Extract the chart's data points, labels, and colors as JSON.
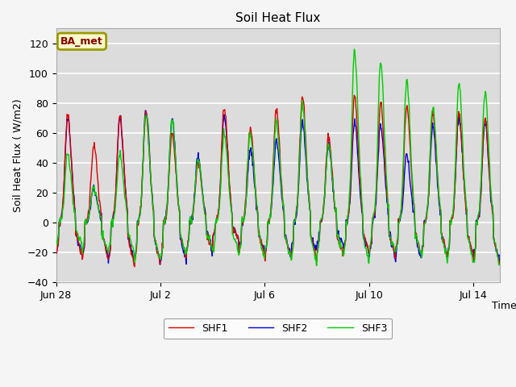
{
  "title": "Soil Heat Flux",
  "ylabel": "Soil Heat Flux ( W/m2)",
  "xlabel": "Time",
  "legend_label": "BA_met",
  "series_labels": [
    "SHF1",
    "SHF2",
    "SHF3"
  ],
  "series_colors": [
    "#dd0000",
    "#0000dd",
    "#00cc00"
  ],
  "ylim": [
    -40,
    130
  ],
  "yticks": [
    -40,
    -20,
    0,
    20,
    40,
    60,
    80,
    100,
    120
  ],
  "bg_color": "#dcdcdc",
  "plot_bg_color": "#dcdcdc",
  "grid_color": "#ffffff",
  "legend_box_bg": "#ffffcc",
  "legend_box_edge": "#999900",
  "fig_bg_color": "#f5f5f5"
}
